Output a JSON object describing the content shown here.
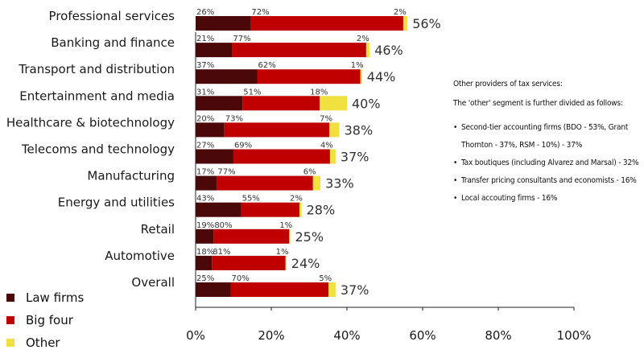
{
  "chart_data": {
    "type": "bar",
    "orientation": "horizontal",
    "stacked": true,
    "categories": [
      "Professional services",
      "Banking and finance",
      "Transport and distribution",
      "Entertainment and media",
      "Healthcare & biotechnology",
      "Telecoms and technology",
      "Manufacturing",
      "Energy and utilities",
      "Retail",
      "Automotive",
      "Overall"
    ],
    "totals": [
      56,
      46,
      44,
      40,
      38,
      37,
      33,
      28,
      25,
      24,
      37
    ],
    "total_labels": [
      "56%",
      "46%",
      "44%",
      "40%",
      "38%",
      "37%",
      "33%",
      "28%",
      "25%",
      "24%",
      "37%"
    ],
    "series": [
      {
        "name": "Law firms",
        "color": "#4a0808",
        "shares": [
          26,
          21,
          37,
          31,
          20,
          27,
          17,
          43,
          19,
          18,
          25
        ],
        "share_labels": [
          "26%",
          "21%",
          "37%",
          "31%",
          "20%",
          "27%",
          "17%",
          "43%",
          "19%",
          "18%",
          "25%"
        ]
      },
      {
        "name": "Big four",
        "color": "#c00000",
        "shares": [
          72,
          77,
          62,
          51,
          73,
          69,
          77,
          55,
          80,
          81,
          70
        ],
        "share_labels": [
          "72%",
          "77%",
          "62%",
          "51%",
          "73%",
          "69%",
          "77%",
          "55%",
          "80%",
          "81%",
          "70%"
        ]
      },
      {
        "name": "Other",
        "color": "#f0e040",
        "shares": [
          2,
          2,
          1,
          18,
          7,
          4,
          6,
          2,
          1,
          1,
          5
        ],
        "share_labels": [
          "2%",
          "2%",
          "1%",
          "18%",
          "7%",
          "4%",
          "6%",
          "2%",
          "1%",
          "1%",
          "5%"
        ]
      }
    ],
    "xlim": [
      0,
      100
    ],
    "x_ticks": [
      0,
      20,
      40,
      60,
      80,
      100
    ],
    "x_tick_labels": [
      "0%",
      "20%",
      "40%",
      "60%",
      "80%",
      "100%"
    ],
    "grid": false,
    "legend_position": "bottom-left"
  },
  "legend": {
    "items": [
      {
        "label": "Law firms",
        "color": "#4a0808"
      },
      {
        "label": "Big four",
        "color": "#c00000"
      },
      {
        "label": "Other",
        "color": "#f0e040"
      }
    ]
  },
  "notes": {
    "title": "Other providers of tax services:",
    "subtitle": "The 'other' segment is further divided as follows:",
    "items": [
      "Second-tier accounting firms (BDO - 53%, Grant Thornton - 37%, RSM - 10%) - 37%",
      "Tax boutiques (including Alvarez and Marsal) - 32%",
      "Transfer pricing consultants and economists - 16%",
      "Local accouting firms - 16%"
    ]
  }
}
